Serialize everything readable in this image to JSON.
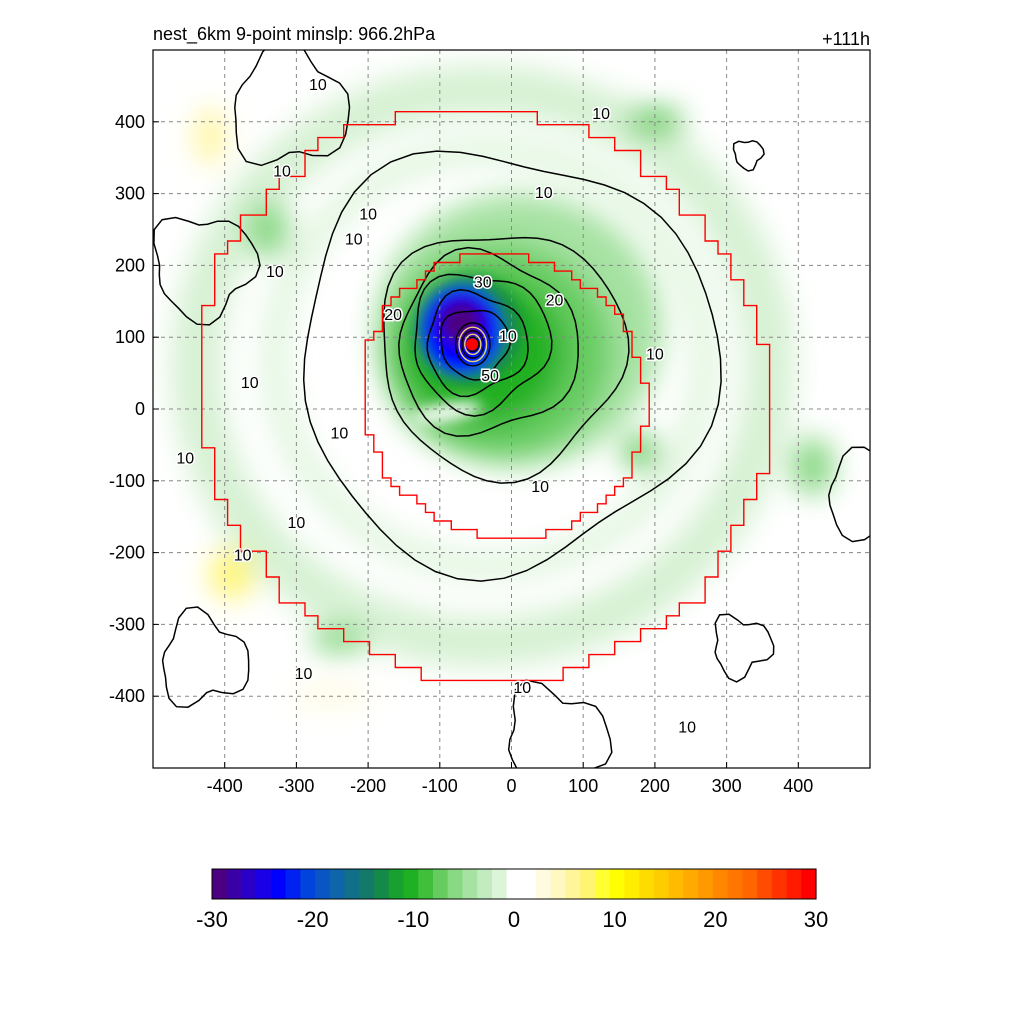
{
  "chart_data": {
    "type": "heatmap",
    "title_left": "nest_6km  9-point minslp: 966.2hPa",
    "title_right": "+111h",
    "xlim": [
      -500,
      500
    ],
    "ylim": [
      -500,
      500
    ],
    "x_ticks": [
      -400,
      -300,
      -200,
      -100,
      0,
      100,
      200,
      300,
      400
    ],
    "y_ticks": [
      -400,
      -300,
      -200,
      -100,
      0,
      100,
      200,
      300,
      400
    ],
    "x_tick_labels": [
      "-400",
      "-300",
      "-200",
      "-100",
      "0",
      "100",
      "200",
      "300",
      "400"
    ],
    "y_tick_labels": [
      "-400",
      "-300",
      "-200",
      "-100",
      "0",
      "100",
      "200",
      "300",
      "400"
    ],
    "grid": true,
    "grid_style": "dashed",
    "storm_center": [
      -55,
      90
    ],
    "storm_center_color": "#ff0000",
    "colorbar": {
      "range": [
        -30,
        30
      ],
      "ticks": [
        -30,
        -20,
        -10,
        0,
        10,
        20,
        30
      ],
      "tick_labels": [
        "-30",
        "-20",
        "-10",
        "0",
        "10",
        "20",
        "30"
      ],
      "colors": [
        "#4b0082",
        "#3a00a6",
        "#2800c8",
        "#1a00e6",
        "#0000ff",
        "#0022f0",
        "#0044dd",
        "#0a55c4",
        "#0e66a8",
        "#117088",
        "#137a6a",
        "#148a4a",
        "#18a030",
        "#20b024",
        "#40bf3a",
        "#66cc60",
        "#88d884",
        "#a6e2a2",
        "#c2ecbf",
        "#dcf5d8",
        "#ffffff",
        "#ffffff",
        "#fffbe0",
        "#fff8c0",
        "#fff59a",
        "#fff570",
        "#ffff33",
        "#ffff00",
        "#ffee00",
        "#ffdc00",
        "#ffcc00",
        "#ffbb00",
        "#ffaa00",
        "#ff9900",
        "#ff8800",
        "#ff7700",
        "#ff6600",
        "#ff4c00",
        "#ff3300",
        "#ff1a00",
        "#ff0000"
      ]
    },
    "contour_label_levels": [
      "10",
      "20",
      "30",
      "50"
    ],
    "contour_labels": [
      {
        "text": "10",
        "x": -270,
        "y": 450
      },
      {
        "text": "10",
        "x": -320,
        "y": 330
      },
      {
        "text": "10",
        "x": -200,
        "y": 270
      },
      {
        "text": "10",
        "x": -330,
        "y": 190
      },
      {
        "text": "10",
        "x": -220,
        "y": 235
      },
      {
        "text": "10",
        "x": 125,
        "y": 410
      },
      {
        "text": "10",
        "x": 45,
        "y": 300
      },
      {
        "text": "10",
        "x": -365,
        "y": 35
      },
      {
        "text": "10",
        "x": -240,
        "y": -35
      },
      {
        "text": "10",
        "x": -455,
        "y": -70
      },
      {
        "text": "10",
        "x": 200,
        "y": 75
      },
      {
        "text": "10",
        "x": 40,
        "y": -110
      },
      {
        "text": "10",
        "x": -300,
        "y": -160
      },
      {
        "text": "10",
        "x": -375,
        "y": -205
      },
      {
        "text": "10",
        "x": -290,
        "y": -370
      },
      {
        "text": "10",
        "x": 15,
        "y": -390
      },
      {
        "text": "10",
        "x": 245,
        "y": -445
      },
      {
        "text": "20",
        "x": -165,
        "y": 130
      },
      {
        "text": "20",
        "x": 60,
        "y": 150
      },
      {
        "text": "30",
        "x": -40,
        "y": 175
      },
      {
        "text": "10",
        "x": -5,
        "y": 100
      },
      {
        "text": "50",
        "x": -30,
        "y": 45
      }
    ]
  }
}
